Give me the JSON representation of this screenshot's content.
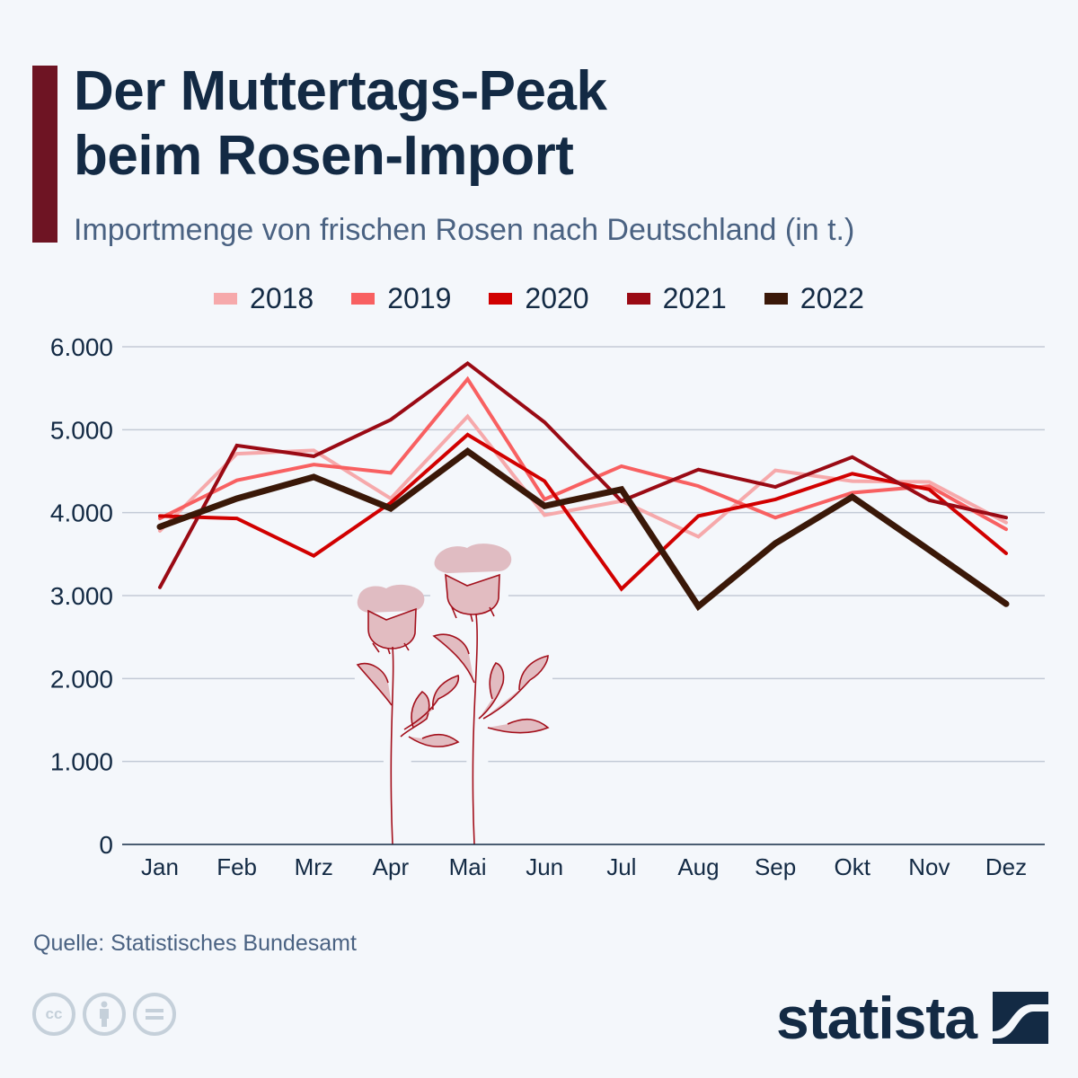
{
  "header": {
    "title_line1": "Der Muttertags-Peak",
    "title_line2": "beim Rosen-Import",
    "subtitle": "Importmenge von frischen Rosen nach Deutschland (in t.)",
    "accent_color": "#6e1423"
  },
  "footer": {
    "source": "Quelle: Statistisches Bundesamt",
    "license_icons": [
      "cc-icon",
      "attribution-icon",
      "no-derivatives-icon"
    ],
    "logo_text": "statista"
  },
  "chart_data": {
    "type": "line",
    "title": "Der Muttertags-Peak beim Rosen-Import",
    "subtitle": "Importmenge von frischen Rosen nach Deutschland (in t.)",
    "xlabel": "",
    "ylabel": "",
    "categories": [
      "Jan",
      "Feb",
      "Mrz",
      "Apr",
      "Mai",
      "Jun",
      "Jul",
      "Aug",
      "Sep",
      "Okt",
      "Nov",
      "Dez"
    ],
    "ylim": [
      0,
      6000
    ],
    "yticks": [
      0,
      1000,
      2000,
      3000,
      4000,
      5000,
      6000
    ],
    "ytick_labels": [
      "0",
      "1.000",
      "2.000",
      "3.000",
      "4.000",
      "5.000",
      "6.000"
    ],
    "grid": true,
    "legend_position": "top-center",
    "series": [
      {
        "name": "2018",
        "color": "#f6a9ab",
        "values": [
          3780,
          4710,
          4750,
          4170,
          5160,
          3970,
          4140,
          3710,
          4510,
          4380,
          4370,
          3880
        ]
      },
      {
        "name": "2019",
        "color": "#f86061",
        "values": [
          3930,
          4390,
          4580,
          4480,
          5610,
          4160,
          4560,
          4320,
          3940,
          4240,
          4320,
          3800
        ]
      },
      {
        "name": "2020",
        "color": "#d10000",
        "values": [
          3960,
          3930,
          3480,
          4120,
          4940,
          4380,
          3080,
          3960,
          4160,
          4470,
          4280,
          3510
        ]
      },
      {
        "name": "2021",
        "color": "#9a0a14",
        "values": [
          3100,
          4810,
          4680,
          5120,
          5800,
          5090,
          4140,
          4520,
          4310,
          4670,
          4150,
          3940
        ]
      },
      {
        "name": "2022",
        "color": "#3a1808",
        "values": [
          3830,
          4170,
          4430,
          4050,
          4740,
          4080,
          4280,
          2870,
          3630,
          4190,
          3550,
          2900
        ]
      }
    ]
  }
}
